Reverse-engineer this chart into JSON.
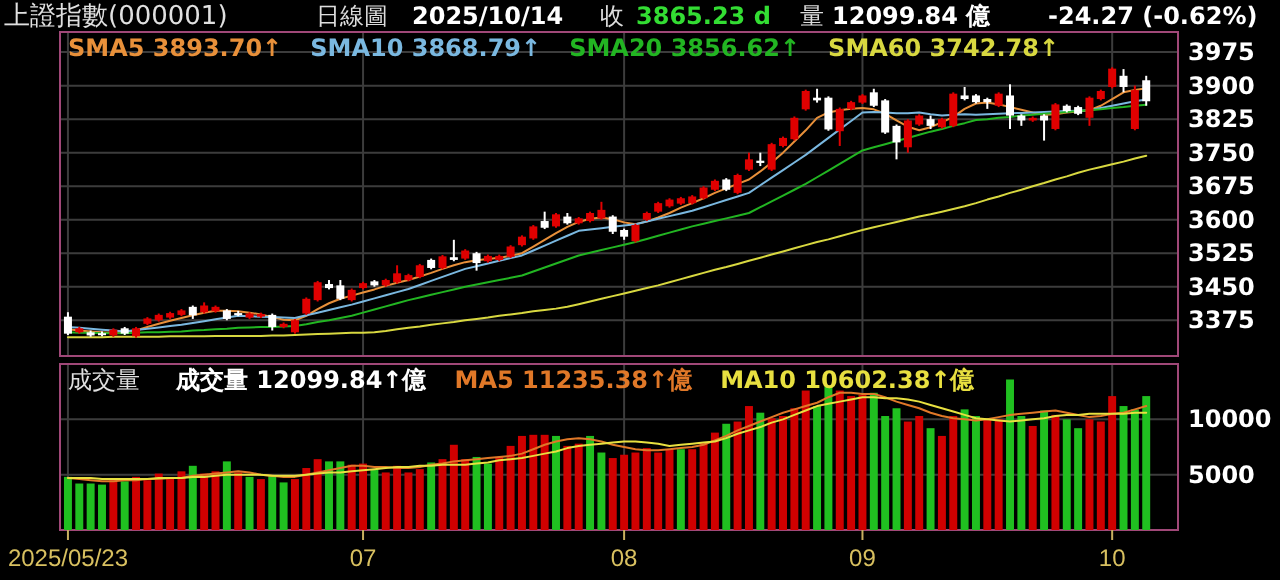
{
  "chart_data": [
    {
      "type": "candlestick",
      "title": "上證指數(000001)",
      "annotations": [
        "日線圖",
        "2025/10/14",
        "收",
        "3865.23 d",
        "量",
        "12099.84 億",
        "-24.27 (-0.62%)"
      ],
      "categories": [
        "2025/05/23",
        null,
        null,
        null,
        null,
        null,
        null,
        null,
        null,
        null,
        null,
        null,
        null,
        null,
        null,
        null,
        null,
        null,
        null,
        null,
        null,
        null,
        null,
        null,
        null,
        null,
        "07",
        null,
        null,
        null,
        null,
        null,
        null,
        null,
        null,
        null,
        null,
        null,
        null,
        null,
        null,
        null,
        null,
        null,
        null,
        null,
        null,
        null,
        null,
        "08",
        null,
        null,
        null,
        null,
        null,
        null,
        null,
        null,
        null,
        null,
        null,
        null,
        null,
        null,
        null,
        null,
        null,
        null,
        null,
        null,
        "09",
        null,
        null,
        null,
        null,
        null,
        null,
        null,
        null,
        null,
        null,
        null,
        null,
        null,
        null,
        null,
        null,
        null,
        null,
        null,
        null,
        null,
        "10",
        null,
        null,
        null
      ],
      "ohlc": [
        [
          3383,
          3393,
          3342,
          3345
        ],
        [
          3348,
          3360,
          3345,
          3357
        ],
        [
          3348,
          3352,
          3338,
          3341
        ],
        [
          3346,
          3350,
          3339,
          3342
        ],
        [
          3341,
          3357,
          3338,
          3354
        ],
        [
          3357,
          3360,
          3342,
          3345
        ],
        [
          3339,
          3360,
          3336,
          3357
        ],
        [
          3367,
          3382,
          3364,
          3379
        ],
        [
          3375,
          3390,
          3372,
          3387
        ],
        [
          3381,
          3394,
          3378,
          3391
        ],
        [
          3387,
          3400,
          3384,
          3397
        ],
        [
          3405,
          3408,
          3378,
          3386
        ],
        [
          3393,
          3415,
          3390,
          3408
        ],
        [
          3395,
          3408,
          3392,
          3405
        ],
        [
          3397,
          3400,
          3375,
          3378
        ],
        [
          3391,
          3396,
          3384,
          3389
        ],
        [
          3381,
          3393,
          3378,
          3390
        ],
        [
          3383,
          3392,
          3380,
          3389
        ],
        [
          3387,
          3390,
          3352,
          3360
        ],
        [
          3360,
          3370,
          3357,
          3367
        ],
        [
          3348,
          3378,
          3345,
          3375
        ],
        [
          3390,
          3426,
          3387,
          3423
        ],
        [
          3420,
          3463,
          3417,
          3460
        ],
        [
          3456,
          3465,
          3444,
          3447
        ],
        [
          3453,
          3465,
          3420,
          3423
        ],
        [
          3420,
          3446,
          3417,
          3443
        ],
        [
          3447,
          3461,
          3444,
          3458
        ],
        [
          3462,
          3465,
          3450,
          3453
        ],
        [
          3453,
          3468,
          3450,
          3465
        ],
        [
          3460,
          3498,
          3457,
          3480
        ],
        [
          3465,
          3479,
          3462,
          3476
        ],
        [
          3472,
          3501,
          3469,
          3498
        ],
        [
          3510,
          3513,
          3489,
          3492
        ],
        [
          3492,
          3521,
          3489,
          3518
        ],
        [
          3516,
          3555,
          3507,
          3510
        ],
        [
          3513,
          3534,
          3510,
          3531
        ],
        [
          3525,
          3528,
          3486,
          3503
        ],
        [
          3507,
          3522,
          3504,
          3519
        ],
        [
          3510,
          3522,
          3507,
          3519
        ],
        [
          3517,
          3543,
          3514,
          3540
        ],
        [
          3543,
          3565,
          3540,
          3562
        ],
        [
          3558,
          3588,
          3555,
          3585
        ],
        [
          3597,
          3618,
          3579,
          3582
        ],
        [
          3585,
          3615,
          3582,
          3612
        ],
        [
          3607,
          3615,
          3589,
          3592
        ],
        [
          3592,
          3606,
          3589,
          3603
        ],
        [
          3597,
          3618,
          3594,
          3615
        ],
        [
          3603,
          3640,
          3600,
          3622
        ],
        [
          3607,
          3610,
          3568,
          3573
        ],
        [
          3577,
          3580,
          3555,
          3562
        ],
        [
          3552,
          3591,
          3549,
          3588
        ],
        [
          3600,
          3618,
          3597,
          3615
        ],
        [
          3618,
          3640,
          3615,
          3637
        ],
        [
          3630,
          3648,
          3627,
          3645
        ],
        [
          3636,
          3651,
          3633,
          3648
        ],
        [
          3637,
          3655,
          3634,
          3652
        ],
        [
          3648,
          3675,
          3645,
          3672
        ],
        [
          3667,
          3690,
          3664,
          3687
        ],
        [
          3690,
          3693,
          3664,
          3667
        ],
        [
          3660,
          3703,
          3657,
          3700
        ],
        [
          3712,
          3750,
          3709,
          3735
        ],
        [
          3732,
          3750,
          3720,
          3727
        ],
        [
          3712,
          3772,
          3709,
          3769
        ],
        [
          3765,
          3786,
          3762,
          3783
        ],
        [
          3780,
          3831,
          3777,
          3828
        ],
        [
          3847,
          3891,
          3844,
          3888
        ],
        [
          3873,
          3893,
          3862,
          3867
        ],
        [
          3873,
          3876,
          3799,
          3802
        ],
        [
          3798,
          3851,
          3765,
          3848
        ],
        [
          3848,
          3866,
          3845,
          3863
        ],
        [
          3862,
          3881,
          3859,
          3878
        ],
        [
          3885,
          3893,
          3852,
          3855
        ],
        [
          3867,
          3870,
          3792,
          3795
        ],
        [
          3810,
          3813,
          3735,
          3773
        ],
        [
          3762,
          3825,
          3750,
          3822
        ],
        [
          3813,
          3836,
          3810,
          3833
        ],
        [
          3825,
          3833,
          3803,
          3810
        ],
        [
          3807,
          3828,
          3804,
          3825
        ],
        [
          3810,
          3885,
          3807,
          3882
        ],
        [
          3878,
          3897,
          3867,
          3870
        ],
        [
          3878,
          3881,
          3860,
          3863
        ],
        [
          3870,
          3873,
          3848,
          3863
        ],
        [
          3855,
          3885,
          3852,
          3882
        ],
        [
          3878,
          3903,
          3803,
          3833
        ],
        [
          3833,
          3836,
          3810,
          3822
        ],
        [
          3822,
          3831,
          3819,
          3828
        ],
        [
          3833,
          3836,
          3777,
          3822
        ],
        [
          3803,
          3861,
          3800,
          3858
        ],
        [
          3855,
          3858,
          3840,
          3843
        ],
        [
          3852,
          3855,
          3834,
          3837
        ],
        [
          3828,
          3876,
          3810,
          3873
        ],
        [
          3870,
          3891,
          3867,
          3888
        ],
        [
          3897,
          3941,
          3894,
          3938
        ],
        [
          3922,
          3937,
          3885,
          3897
        ],
        [
          3803,
          3900,
          3800,
          3890
        ],
        [
          3912,
          3922,
          3855,
          3865
        ]
      ],
      "colors": [
        "#ffffff",
        "#e00000",
        "#ffffff",
        "#ffffff",
        "#e00000",
        "#ffffff",
        "#e00000",
        "#e00000",
        "#e00000",
        "#e00000",
        "#e00000",
        "#ffffff",
        "#e00000",
        "#e00000",
        "#ffffff",
        "#ffffff",
        "#e00000",
        "#e00000",
        "#ffffff",
        "#e00000",
        "#e00000",
        "#e00000",
        "#e00000",
        "#ffffff",
        "#ffffff",
        "#e00000",
        "#e00000",
        "#ffffff",
        "#e00000",
        "#e00000",
        "#e00000",
        "#e00000",
        "#ffffff",
        "#e00000",
        "#ffffff",
        "#e00000",
        "#ffffff",
        "#e00000",
        "#e00000",
        "#e00000",
        "#e00000",
        "#e00000",
        "#ffffff",
        "#e00000",
        "#ffffff",
        "#e00000",
        "#e00000",
        "#e00000",
        "#ffffff",
        "#ffffff",
        "#e00000",
        "#e00000",
        "#e00000",
        "#e00000",
        "#e00000",
        "#e00000",
        "#e00000",
        "#e00000",
        "#ffffff",
        "#e00000",
        "#e00000",
        "#ffffff",
        "#e00000",
        "#e00000",
        "#e00000",
        "#e00000",
        "#ffffff",
        "#ffffff",
        "#e00000",
        "#e00000",
        "#e00000",
        "#ffffff",
        "#ffffff",
        "#ffffff",
        "#e00000",
        "#e00000",
        "#ffffff",
        "#e00000",
        "#e00000",
        "#ffffff",
        "#ffffff",
        "#ffffff",
        "#e00000",
        "#ffffff",
        "#ffffff",
        "#e00000",
        "#ffffff",
        "#e00000",
        "#ffffff",
        "#ffffff",
        "#e00000",
        "#e00000",
        "#e00000",
        "#ffffff",
        "#e00000",
        "#ffffff"
      ],
      "series": [
        {
          "name": "SMA5 3893.70↑",
          "type": "line",
          "color": "#e8903a",
          "values": [
            3355,
            3352,
            3350,
            3348,
            3347,
            3348,
            3352,
            3360,
            3367,
            3374,
            3380,
            3386,
            3392,
            3396,
            3396,
            3395,
            3392,
            3388,
            3382,
            3376,
            3375,
            3385,
            3400,
            3413,
            3423,
            3430,
            3437,
            3444,
            3452,
            3459,
            3465,
            3473,
            3481,
            3490,
            3498,
            3505,
            3509,
            3512,
            3515,
            3519,
            3525,
            3540,
            3555,
            3570,
            3584,
            3595,
            3602,
            3605,
            3601,
            3594,
            3590,
            3596,
            3605,
            3615,
            3627,
            3637,
            3648,
            3660,
            3670,
            3680,
            3690,
            3708,
            3728,
            3750,
            3775,
            3800,
            3828,
            3840,
            3845,
            3848,
            3850,
            3847,
            3837,
            3822,
            3808,
            3800,
            3807,
            3818,
            3830,
            3848,
            3860,
            3862,
            3858,
            3852,
            3846,
            3840,
            3835,
            3836,
            3840,
            3842,
            3845,
            3855,
            3870,
            3885,
            3890,
            3894
          ]
        },
        {
          "name": "SMA10 3868.79↑",
          "type": "line",
          "color": "#7ab8e0",
          "values": [
            3360,
            3358,
            3356,
            3354,
            3352,
            3350,
            3353,
            3356,
            3359,
            3362,
            3365,
            3369,
            3373,
            3377,
            3381,
            3385,
            3384,
            3383,
            3382,
            3381,
            3380,
            3386,
            3392,
            3398,
            3404,
            3410,
            3417,
            3424,
            3431,
            3438,
            3445,
            3454,
            3463,
            3472,
            3481,
            3490,
            3496,
            3502,
            3508,
            3514,
            3520,
            3531,
            3542,
            3553,
            3564,
            3575,
            3578,
            3581,
            3584,
            3587,
            3590,
            3596,
            3602,
            3608,
            3614,
            3620,
            3628,
            3636,
            3644,
            3652,
            3660,
            3677,
            3694,
            3711,
            3728,
            3745,
            3764,
            3783,
            3802,
            3821,
            3840,
            3841,
            3840,
            3838,
            3838,
            3840,
            3836,
            3833,
            3835,
            3836,
            3835,
            3836,
            3837,
            3838,
            3839,
            3840,
            3841,
            3842,
            3843,
            3844,
            3845,
            3850,
            3855,
            3860,
            3865,
            3869
          ]
        },
        {
          "name": "SMA20 3856.62↑",
          "type": "line",
          "color": "#22b522",
          "values": [
            3348,
            3347,
            3347,
            3346,
            3346,
            3346,
            3347,
            3348,
            3348,
            3349,
            3350,
            3352,
            3353,
            3355,
            3356,
            3358,
            3359,
            3360,
            3360,
            3361,
            3362,
            3366,
            3371,
            3375,
            3380,
            3385,
            3392,
            3399,
            3406,
            3413,
            3420,
            3426,
            3432,
            3438,
            3444,
            3450,
            3455,
            3460,
            3465,
            3470,
            3475,
            3484,
            3493,
            3502,
            3511,
            3520,
            3526,
            3532,
            3538,
            3544,
            3550,
            3557,
            3564,
            3571,
            3578,
            3585,
            3591,
            3597,
            3603,
            3609,
            3615,
            3628,
            3641,
            3654,
            3667,
            3680,
            3695,
            3710,
            3725,
            3740,
            3755,
            3762,
            3769,
            3776,
            3783,
            3790,
            3797,
            3803,
            3810,
            3816,
            3823,
            3825,
            3828,
            3830,
            3833,
            3835,
            3837,
            3839,
            3841,
            3843,
            3845,
            3847,
            3850,
            3852,
            3855,
            3857
          ]
        },
        {
          "name": "SMA60 3742.78↑",
          "type": "line",
          "color": "#d8d840",
          "values": [
            3337,
            3337,
            3337,
            3337,
            3338,
            3338,
            3338,
            3338,
            3338,
            3339,
            3339,
            3339,
            3339,
            3340,
            3340,
            3340,
            3340,
            3340,
            3341,
            3341,
            3342,
            3343,
            3344,
            3345,
            3346,
            3347,
            3347,
            3348,
            3351,
            3355,
            3358,
            3361,
            3365,
            3368,
            3371,
            3375,
            3378,
            3381,
            3385,
            3388,
            3391,
            3395,
            3398,
            3401,
            3405,
            3411,
            3417,
            3423,
            3429,
            3435,
            3441,
            3447,
            3453,
            3460,
            3467,
            3474,
            3481,
            3488,
            3494,
            3501,
            3508,
            3515,
            3522,
            3529,
            3536,
            3543,
            3550,
            3556,
            3563,
            3570,
            3577,
            3583,
            3589,
            3595,
            3601,
            3607,
            3612,
            3618,
            3624,
            3630,
            3637,
            3645,
            3652,
            3660,
            3667,
            3675,
            3682,
            3690,
            3697,
            3705,
            3712,
            3718,
            3724,
            3730,
            3737,
            3743
          ]
        }
      ],
      "ylim": [
        3295,
        4020
      ],
      "yticks": [
        3375,
        3450,
        3525,
        3600,
        3675,
        3750,
        3825,
        3900,
        3975
      ],
      "grid": true,
      "legend": "top left",
      "tick_labels": "y"
    },
    {
      "type": "bar",
      "title": "成交量",
      "categories": [
        "2025/05/23",
        null,
        null,
        null,
        null,
        null,
        null,
        null,
        null,
        null,
        null,
        null,
        null,
        null,
        null,
        null,
        null,
        null,
        null,
        null,
        null,
        null,
        null,
        null,
        null,
        null,
        "07",
        null,
        null,
        null,
        null,
        null,
        null,
        null,
        null,
        null,
        null,
        null,
        null,
        null,
        null,
        null,
        null,
        null,
        null,
        null,
        null,
        null,
        null,
        "08",
        null,
        null,
        null,
        null,
        null,
        null,
        null,
        null,
        null,
        null,
        null,
        null,
        null,
        null,
        null,
        null,
        null,
        null,
        null,
        null,
        "09",
        null,
        null,
        null,
        null,
        null,
        null,
        null,
        null,
        null,
        null,
        null,
        null,
        null,
        null,
        null,
        null,
        null,
        null,
        null,
        null,
        null,
        "10",
        null,
        null,
        null
      ],
      "series": [
        {
          "name": "成交量 12099.84↑億",
          "type": "bar",
          "colors": [
            "#20c020",
            "#20c020",
            "#20c020",
            "#20c020",
            "#d00000",
            "#20c020",
            "#d00000",
            "#d00000",
            "#d00000",
            "#d00000",
            "#d00000",
            "#20c020",
            "#d00000",
            "#d00000",
            "#20c020",
            "#d00000",
            "#20c020",
            "#d00000",
            "#20c020",
            "#20c020",
            "#d00000",
            "#d00000",
            "#d00000",
            "#20c020",
            "#20c020",
            "#d00000",
            "#d00000",
            "#20c020",
            "#d00000",
            "#d00000",
            "#d00000",
            "#d00000",
            "#20c020",
            "#d00000",
            "#d00000",
            "#d00000",
            "#20c020",
            "#20c020",
            "#d00000",
            "#d00000",
            "#d00000",
            "#d00000",
            "#d00000",
            "#20c020",
            "#d00000",
            "#d00000",
            "#20c020",
            "#20c020",
            "#d00000",
            "#d00000",
            "#d00000",
            "#d00000",
            "#d00000",
            "#d00000",
            "#20c020",
            "#d00000",
            "#d00000",
            "#d00000",
            "#20c020",
            "#d00000",
            "#d00000",
            "#20c020",
            "#d00000",
            "#d00000",
            "#d00000",
            "#d00000",
            "#20c020",
            "#20c020",
            "#d00000",
            "#d00000",
            "#d00000",
            "#20c020",
            "#20c020",
            "#20c020",
            "#d00000",
            "#d00000",
            "#20c020",
            "#d00000",
            "#d00000",
            "#20c020",
            "#20c020",
            "#d00000",
            "#d00000",
            "#20c020",
            "#20c020",
            "#d00000",
            "#20c020",
            "#d00000",
            "#20c020",
            "#20c020",
            "#d00000",
            "#d00000",
            "#d00000",
            "#20c020",
            "#20c020",
            "#20c020"
          ],
          "values": [
            4800,
            4200,
            4200,
            4100,
            4700,
            4400,
            4800,
            4500,
            5100,
            4700,
            5300,
            5800,
            5100,
            5300,
            6200,
            5200,
            4800,
            4600,
            4900,
            4300,
            4600,
            5600,
            6400,
            6200,
            6200,
            5900,
            6000,
            5500,
            5200,
            5800,
            5200,
            5500,
            6100,
            6400,
            7700,
            6400,
            6600,
            6000,
            6600,
            7600,
            8500,
            8600,
            8600,
            8500,
            7600,
            7800,
            8500,
            7000,
            6500,
            6800,
            7000,
            7400,
            7000,
            7300,
            7300,
            7300,
            7900,
            8800,
            9600,
            9800,
            11200,
            10600,
            10100,
            10300,
            11000,
            12600,
            11200,
            13000,
            12600,
            12100,
            12200,
            12400,
            10300,
            11000,
            9800,
            10300,
            9200,
            8500,
            10300,
            10900,
            10300,
            10000,
            10000,
            13600,
            10300,
            9400,
            10800,
            10400,
            10000,
            9200,
            10000,
            9800,
            12100,
            11200,
            10900,
            12100
          ]
        },
        {
          "name": "MA5 11235.38↑億",
          "type": "line",
          "color": "#e07828",
          "values": [
            4700,
            4600,
            4500,
            4400,
            4400,
            4500,
            4500,
            4600,
            4600,
            4700,
            4700,
            4900,
            5000,
            5100,
            5200,
            5300,
            5200,
            5000,
            4900,
            4800,
            4800,
            5000,
            5200,
            5400,
            5600,
            5800,
            5800,
            5700,
            5700,
            5600,
            5600,
            5700,
            5900,
            6000,
            6200,
            6300,
            6400,
            6500,
            6600,
            6700,
            6900,
            7300,
            7700,
            8000,
            8200,
            8300,
            8200,
            8000,
            7700,
            7500,
            7300,
            7200,
            7200,
            7300,
            7400,
            7500,
            7700,
            8100,
            8500,
            9000,
            9400,
            9800,
            10200,
            10600,
            10900,
            11200,
            11500,
            12000,
            12400,
            12400,
            12300,
            12300,
            12000,
            11600,
            11300,
            11000,
            10600,
            10300,
            10100,
            10000,
            9900,
            10000,
            10200,
            10400,
            10500,
            10600,
            10700,
            10800,
            10600,
            10400,
            10200,
            10300,
            10500,
            10600,
            10900,
            11200
          ]
        },
        {
          "name": "MA10 10602.38↑億",
          "type": "line",
          "color": "#e8e040",
          "values": [
            4700,
            4700,
            4700,
            4600,
            4600,
            4600,
            4600,
            4600,
            4700,
            4700,
            4700,
            4800,
            4800,
            4900,
            5000,
            5000,
            5000,
            5000,
            4900,
            4900,
            4900,
            5000,
            5100,
            5200,
            5200,
            5300,
            5400,
            5500,
            5600,
            5700,
            5700,
            5800,
            5800,
            5900,
            5900,
            5900,
            6000,
            6100,
            6300,
            6400,
            6500,
            6700,
            6900,
            7100,
            7400,
            7600,
            7700,
            7800,
            7900,
            8000,
            8000,
            7900,
            7800,
            7600,
            7700,
            7800,
            7900,
            8000,
            8300,
            8700,
            9000,
            9300,
            9700,
            10000,
            10400,
            10800,
            11200,
            11400,
            11600,
            11800,
            12000,
            12000,
            11900,
            11900,
            11800,
            11600,
            11300,
            11000,
            10700,
            10400,
            10100,
            10000,
            9900,
            9800,
            9900,
            10000,
            10100,
            10300,
            10400,
            10400,
            10500,
            10500,
            10500,
            10500,
            10600,
            10600
          ]
        }
      ],
      "ylim": [
        0,
        15000
      ],
      "yticks": [
        5000,
        10000
      ],
      "grid": true,
      "legend": "top left"
    }
  ]
}
